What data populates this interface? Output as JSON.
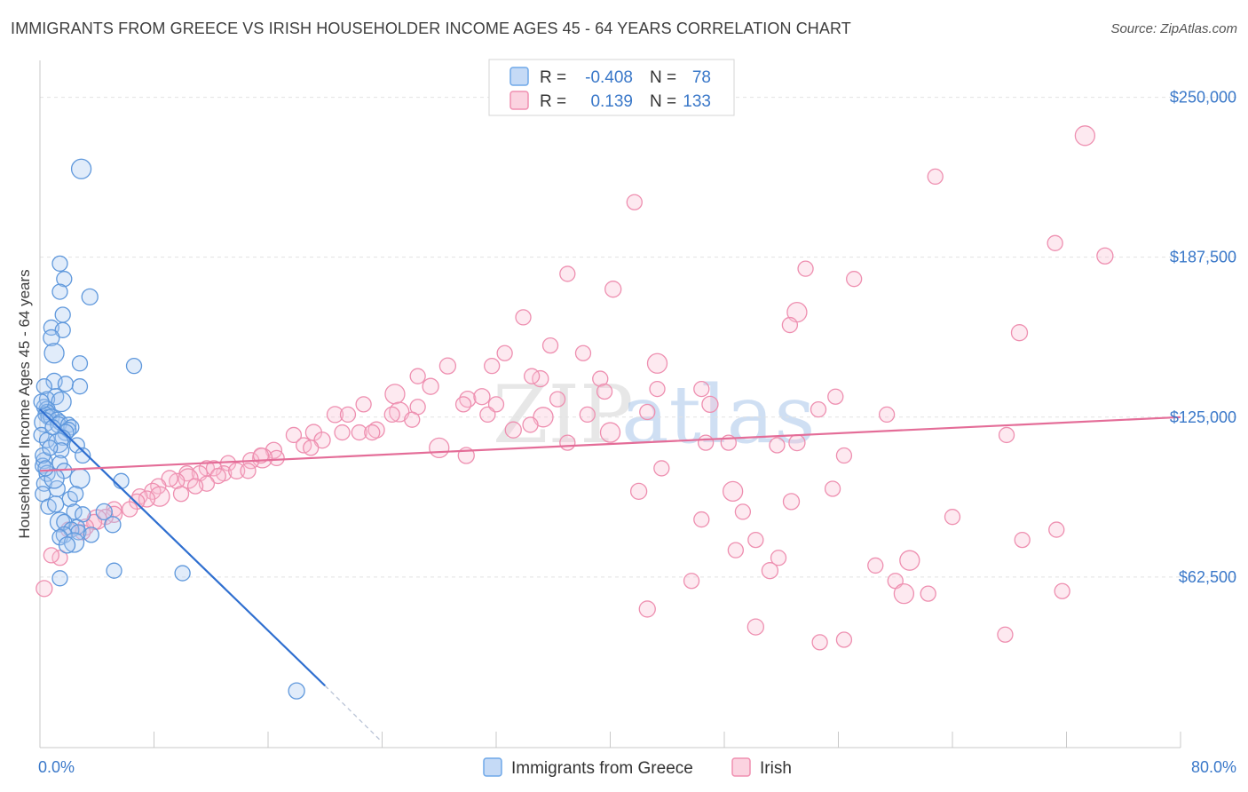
{
  "title": "IMMIGRANTS FROM GREECE VS IRISH HOUSEHOLDER INCOME AGES 45 - 64 YEARS CORRELATION CHART",
  "source": "Source: ZipAtlas.com",
  "watermark": {
    "zip": "ZIP",
    "atlas": "atlas"
  },
  "colors": {
    "blue": "#6fa8e8",
    "blue_line": "#2f6fd0",
    "pink": "#f08fb0",
    "pink_line": "#e46d98",
    "axis_text": "#3a78c9"
  },
  "legend": {
    "rows": [
      {
        "r_label": "R =",
        "r_value": "-0.408",
        "n_label": "N =",
        "n_value": "78"
      },
      {
        "r_label": "R =",
        "r_value": "0.139",
        "n_label": "N =",
        "n_value": "133"
      }
    ],
    "bottom": [
      "Immigrants from Greece",
      "Irish"
    ]
  },
  "chart_data": {
    "type": "scatter",
    "ylabel": "Householder Income Ages 45 - 64 years",
    "xlabel": "",
    "x_ticks": [
      "0.0%",
      "80.0%"
    ],
    "y_ticks": [
      "$62,500",
      "$125,000",
      "$187,500",
      "$250,000"
    ],
    "xlim": [
      0,
      80
    ],
    "ylim": [
      0,
      262000
    ],
    "grid": "horizontal dashed",
    "series": [
      {
        "name": "Immigrants from Greece",
        "color": "#6fa8e8",
        "trend": {
          "x0": 0,
          "y0": 128000,
          "x1": 20,
          "y1": 20000,
          "dash_to_x": 24,
          "dash_to_y": -2000
        },
        "points": [
          [
            2.9,
            222000
          ],
          [
            1.4,
            185000
          ],
          [
            1.7,
            179000
          ],
          [
            1.4,
            174000
          ],
          [
            3.5,
            172000
          ],
          [
            1.6,
            165000
          ],
          [
            0.8,
            160000
          ],
          [
            1.6,
            159000
          ],
          [
            0.8,
            156000
          ],
          [
            1.0,
            150000
          ],
          [
            2.8,
            146000
          ],
          [
            6.6,
            145000
          ],
          [
            1.0,
            139000
          ],
          [
            1.8,
            138000
          ],
          [
            0.3,
            137000
          ],
          [
            2.8,
            137000
          ],
          [
            1.1,
            133000
          ],
          [
            0.5,
            132000
          ],
          [
            1.5,
            131000
          ],
          [
            0.3,
            129000
          ],
          [
            0.5,
            128000
          ],
          [
            0.5,
            127000
          ],
          [
            0.4,
            126000
          ],
          [
            0.6,
            125000
          ],
          [
            0.8,
            125000
          ],
          [
            1.2,
            124000
          ],
          [
            1.4,
            123000
          ],
          [
            0.3,
            123000
          ],
          [
            1.3,
            122000
          ],
          [
            2.0,
            122000
          ],
          [
            2.2,
            121000
          ],
          [
            2.0,
            120000
          ],
          [
            1.8,
            119000
          ],
          [
            0.1,
            118000
          ],
          [
            1.6,
            117000
          ],
          [
            0.5,
            116000
          ],
          [
            1.3,
            115000
          ],
          [
            2.6,
            114000
          ],
          [
            1.5,
            112000
          ],
          [
            3.0,
            110000
          ],
          [
            0.3,
            108000
          ],
          [
            1.4,
            107000
          ],
          [
            0.2,
            106000
          ],
          [
            1.7,
            104000
          ],
          [
            0.5,
            103000
          ],
          [
            2.8,
            101000
          ],
          [
            5.7,
            100000
          ],
          [
            0.3,
            99000
          ],
          [
            1.2,
            97000
          ],
          [
            0.2,
            95000
          ],
          [
            2.1,
            93000
          ],
          [
            2.4,
            88000
          ],
          [
            4.5,
            88000
          ],
          [
            3.0,
            87000
          ],
          [
            1.4,
            84000
          ],
          [
            1.7,
            84000
          ],
          [
            5.1,
            83000
          ],
          [
            2.6,
            82000
          ],
          [
            2.2,
            81000
          ],
          [
            2.7,
            80000
          ],
          [
            1.7,
            79000
          ],
          [
            3.6,
            79000
          ],
          [
            1.4,
            78000
          ],
          [
            2.4,
            76000
          ],
          [
            1.9,
            75000
          ],
          [
            5.2,
            65000
          ],
          [
            10.0,
            64000
          ],
          [
            1.4,
            62000
          ],
          [
            18.0,
            18000
          ],
          [
            0.2,
            110000
          ],
          [
            0.9,
            121000
          ],
          [
            0.7,
            113000
          ],
          [
            1.0,
            101000
          ],
          [
            0.1,
            131000
          ],
          [
            0.6,
            90000
          ],
          [
            0.4,
            105000
          ],
          [
            1.1,
            91000
          ],
          [
            2.5,
            95000
          ]
        ]
      },
      {
        "name": "Irish",
        "color": "#f08fb0",
        "trend": {
          "x0": 0,
          "y0": 104000,
          "x1": 80,
          "y1": 125000
        },
        "points": [
          [
            73.3,
            235000
          ],
          [
            62.8,
            219000
          ],
          [
            41.7,
            209000
          ],
          [
            71.2,
            193000
          ],
          [
            74.7,
            188000
          ],
          [
            37.0,
            181000
          ],
          [
            53.7,
            183000
          ],
          [
            57.1,
            179000
          ],
          [
            40.2,
            175000
          ],
          [
            53.1,
            166000
          ],
          [
            33.9,
            164000
          ],
          [
            52.6,
            161000
          ],
          [
            68.7,
            158000
          ],
          [
            35.8,
            153000
          ],
          [
            32.6,
            150000
          ],
          [
            38.1,
            150000
          ],
          [
            28.6,
            145000
          ],
          [
            31.7,
            145000
          ],
          [
            43.3,
            146000
          ],
          [
            26.5,
            141000
          ],
          [
            35.1,
            140000
          ],
          [
            34.5,
            141000
          ],
          [
            39.3,
            140000
          ],
          [
            43.3,
            136000
          ],
          [
            27.4,
            137000
          ],
          [
            36.3,
            132000
          ],
          [
            46.4,
            136000
          ],
          [
            24.9,
            134000
          ],
          [
            30.0,
            132000
          ],
          [
            32.0,
            130000
          ],
          [
            55.8,
            133000
          ],
          [
            39.6,
            135000
          ],
          [
            31.0,
            133000
          ],
          [
            22.7,
            130000
          ],
          [
            29.7,
            130000
          ],
          [
            26.5,
            129000
          ],
          [
            25.2,
            127000
          ],
          [
            31.4,
            126000
          ],
          [
            42.6,
            127000
          ],
          [
            59.4,
            126000
          ],
          [
            20.7,
            126000
          ],
          [
            38.4,
            126000
          ],
          [
            21.6,
            126000
          ],
          [
            24.7,
            126000
          ],
          [
            47.0,
            130000
          ],
          [
            35.3,
            125000
          ],
          [
            54.6,
            128000
          ],
          [
            34.4,
            122000
          ],
          [
            23.6,
            120000
          ],
          [
            22.4,
            119000
          ],
          [
            23.3,
            119000
          ],
          [
            21.2,
            119000
          ],
          [
            19.2,
            119000
          ],
          [
            17.8,
            118000
          ],
          [
            40.0,
            119000
          ],
          [
            18.5,
            114000
          ],
          [
            19.8,
            116000
          ],
          [
            48.3,
            115000
          ],
          [
            46.7,
            115000
          ],
          [
            51.7,
            114000
          ],
          [
            16.4,
            112000
          ],
          [
            67.8,
            118000
          ],
          [
            16.6,
            109000
          ],
          [
            15.6,
            109000
          ],
          [
            14.8,
            108000
          ],
          [
            13.2,
            107000
          ],
          [
            11.7,
            105000
          ],
          [
            12.9,
            103000
          ],
          [
            13.8,
            104000
          ],
          [
            10.3,
            103000
          ],
          [
            12.2,
            105000
          ],
          [
            11.2,
            103000
          ],
          [
            10.4,
            101000
          ],
          [
            12.5,
            102000
          ],
          [
            11.7,
            99000
          ],
          [
            9.6,
            100000
          ],
          [
            9.1,
            101000
          ],
          [
            14.6,
            104000
          ],
          [
            10.9,
            98000
          ],
          [
            8.3,
            98000
          ],
          [
            7.9,
            96000
          ],
          [
            8.4,
            94000
          ],
          [
            9.9,
            95000
          ],
          [
            7.0,
            94000
          ],
          [
            7.5,
            93000
          ],
          [
            6.8,
            92000
          ],
          [
            5.2,
            89000
          ],
          [
            6.3,
            89000
          ],
          [
            5.2,
            87000
          ],
          [
            4.6,
            86000
          ],
          [
            4.0,
            85000
          ],
          [
            3.8,
            84000
          ],
          [
            3.2,
            82000
          ],
          [
            3.0,
            80000
          ],
          [
            2.0,
            81000
          ],
          [
            1.4,
            70000
          ],
          [
            0.3,
            58000
          ],
          [
            56.4,
            110000
          ],
          [
            43.6,
            105000
          ],
          [
            48.6,
            96000
          ],
          [
            42.0,
            96000
          ],
          [
            55.6,
            97000
          ],
          [
            49.3,
            88000
          ],
          [
            46.4,
            85000
          ],
          [
            52.7,
            92000
          ],
          [
            64.0,
            86000
          ],
          [
            68.9,
            77000
          ],
          [
            71.3,
            81000
          ],
          [
            61.0,
            69000
          ],
          [
            50.2,
            77000
          ],
          [
            48.8,
            73000
          ],
          [
            51.8,
            70000
          ],
          [
            51.2,
            65000
          ],
          [
            58.6,
            67000
          ],
          [
            45.7,
            61000
          ],
          [
            60.0,
            61000
          ],
          [
            42.6,
            50000
          ],
          [
            60.6,
            56000
          ],
          [
            62.3,
            56000
          ],
          [
            71.7,
            57000
          ],
          [
            50.2,
            43000
          ],
          [
            56.4,
            38000
          ],
          [
            54.7,
            37000
          ],
          [
            67.7,
            40000
          ],
          [
            29.9,
            110000
          ],
          [
            0.8,
            71000
          ],
          [
            28.0,
            113000
          ],
          [
            37.0,
            115000
          ],
          [
            53.1,
            115000
          ],
          [
            15.5,
            110000
          ],
          [
            19.0,
            113000
          ],
          [
            26.1,
            124000
          ],
          [
            33.2,
            120000
          ]
        ]
      }
    ]
  }
}
